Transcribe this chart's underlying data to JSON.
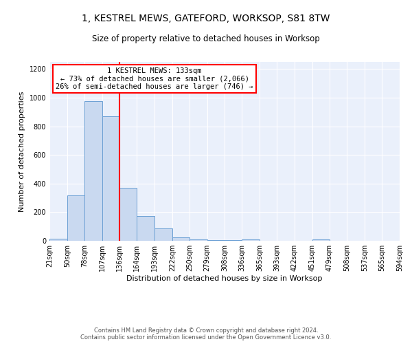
{
  "title": "1, KESTREL MEWS, GATEFORD, WORKSOP, S81 8TW",
  "subtitle": "Size of property relative to detached houses in Worksop",
  "xlabel": "Distribution of detached houses by size in Worksop",
  "ylabel": "Number of detached properties",
  "bin_edges": [
    21,
    50,
    78,
    107,
    136,
    164,
    193,
    222,
    250,
    279,
    308,
    336,
    365,
    393,
    422,
    451,
    479,
    508,
    537,
    565,
    594
  ],
  "bin_heights": [
    15,
    315,
    975,
    870,
    370,
    175,
    85,
    25,
    10,
    5,
    3,
    12,
    2,
    2,
    2,
    12,
    2,
    2,
    2,
    2
  ],
  "bar_color": "#c9d9f0",
  "bar_edge_color": "#6ca0d4",
  "property_line_x": 136,
  "annotation_text": "1 KESTREL MEWS: 133sqm\n← 73% of detached houses are smaller (2,066)\n26% of semi-detached houses are larger (746) →",
  "annotation_box_color": "white",
  "annotation_box_edge_color": "red",
  "vline_color": "red",
  "ylim": [
    0,
    1250
  ],
  "yticks": [
    0,
    200,
    400,
    600,
    800,
    1000,
    1200
  ],
  "background_color": "#eaf0fb",
  "footer_text": "Contains HM Land Registry data © Crown copyright and database right 2024.\nContains public sector information licensed under the Open Government Licence v3.0.",
  "tick_labels": [
    "21sqm",
    "50sqm",
    "78sqm",
    "107sqm",
    "136sqm",
    "164sqm",
    "193sqm",
    "222sqm",
    "250sqm",
    "279sqm",
    "308sqm",
    "336sqm",
    "365sqm",
    "393sqm",
    "422sqm",
    "451sqm",
    "479sqm",
    "508sqm",
    "537sqm",
    "565sqm",
    "594sqm"
  ],
  "title_fontsize": 10,
  "subtitle_fontsize": 8.5,
  "ylabel_fontsize": 8,
  "xlabel_fontsize": 8,
  "tick_fontsize": 7,
  "annotation_fontsize": 7.5,
  "footer_fontsize": 6
}
